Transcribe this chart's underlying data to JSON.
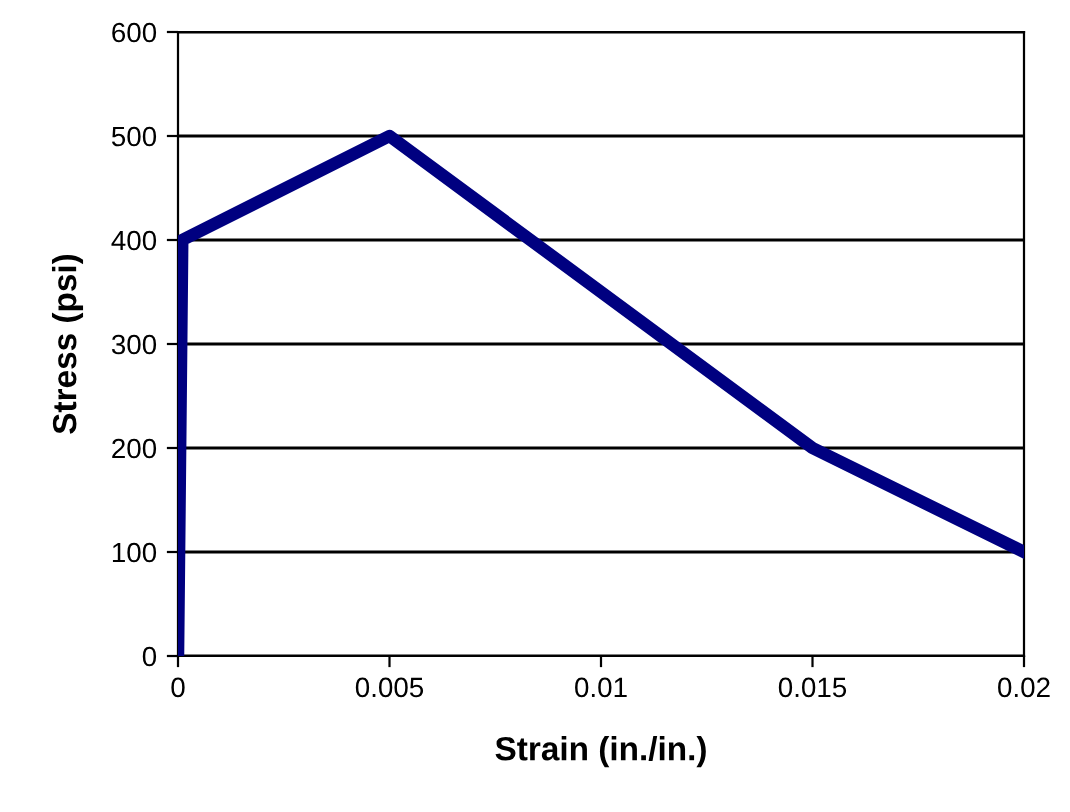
{
  "chart_data": {
    "type": "line",
    "xlabel": "Strain (in./in.)",
    "ylabel": "Stress (psi)",
    "series": [
      {
        "color": "#000080",
        "x": [
          0,
          0.0001,
          0.005,
          0.015,
          0.02
        ],
        "values": [
          0,
          400,
          500,
          200,
          100
        ]
      }
    ],
    "xlim": [
      0,
      0.02
    ],
    "ylim": [
      0,
      600
    ],
    "xticks": [
      0,
      0.005,
      0.01,
      0.015,
      0.02
    ],
    "yticks": [
      0,
      100,
      200,
      300,
      400,
      500,
      600
    ],
    "grid": "y",
    "legend": false,
    "marker": "none",
    "line_style": "solid"
  }
}
